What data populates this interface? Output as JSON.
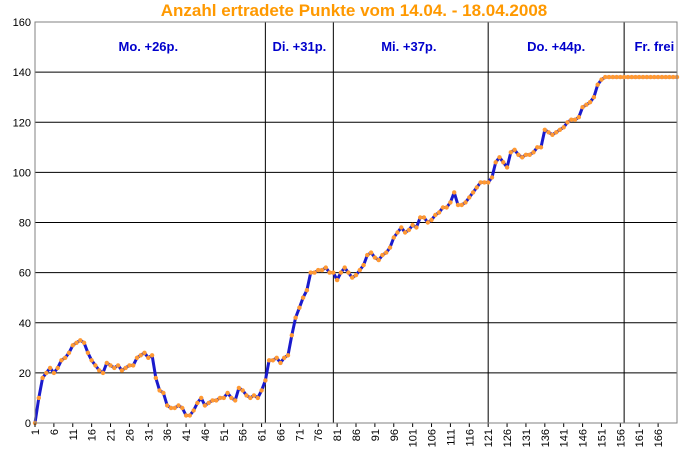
{
  "chart_data": {
    "type": "line",
    "title": "Anzahl ertradete Punkte vom 14.04. - 18.04.2008",
    "xlabel": "",
    "ylabel": "",
    "ylim": [
      0,
      160
    ],
    "xlim": [
      1,
      171
    ],
    "yticks": [
      0,
      20,
      40,
      60,
      80,
      100,
      120,
      140,
      160
    ],
    "xticks": [
      1,
      6,
      11,
      16,
      21,
      26,
      31,
      36,
      41,
      46,
      51,
      56,
      61,
      66,
      71,
      76,
      81,
      86,
      91,
      96,
      101,
      106,
      111,
      116,
      121,
      126,
      131,
      136,
      141,
      146,
      151,
      156,
      161,
      166
    ],
    "grid": "horizontal",
    "legend": "none",
    "colors": {
      "line": "#1a1acc",
      "marker": "#ff9933",
      "title": "#ff9900",
      "labels": "#0000cc"
    },
    "separators": [
      62,
      80,
      121,
      157
    ],
    "segments": [
      {
        "label": "Mo. +26p.",
        "x": 31
      },
      {
        "label": "Di. +31p.",
        "x": 71
      },
      {
        "label": "Mi. +37p.",
        "x": 100
      },
      {
        "label": "Do. +44p.",
        "x": 139
      },
      {
        "label": "Fr. frei",
        "x": 165
      }
    ],
    "series": [
      {
        "x_start": 1,
        "values": [
          0,
          10,
          18,
          20,
          22,
          20,
          22,
          25,
          26,
          28,
          31,
          32,
          33,
          32,
          28,
          25,
          23,
          21,
          20,
          24,
          23,
          22,
          23,
          21,
          22,
          23,
          23,
          26,
          27,
          28,
          26,
          27,
          18,
          13,
          12,
          7,
          6,
          6,
          7,
          6,
          3,
          3,
          5,
          8,
          10,
          7,
          8,
          9,
          9,
          10,
          10,
          12,
          10,
          9,
          14,
          13,
          11,
          10,
          11,
          10,
          13,
          17,
          25,
          25,
          26,
          24,
          26,
          27,
          35,
          42,
          46,
          50,
          53,
          60,
          60,
          61,
          61,
          62,
          60,
          60,
          57,
          60,
          62,
          60,
          58,
          59,
          61,
          63,
          67,
          68,
          66,
          65,
          67,
          68,
          70,
          74,
          76,
          78,
          76,
          77,
          79,
          78,
          82,
          82,
          80,
          81,
          83,
          84,
          86,
          86,
          88,
          92,
          87,
          87,
          88,
          90,
          92,
          94,
          96,
          96,
          96,
          98,
          104,
          106,
          104,
          102,
          108,
          109,
          107,
          106,
          107,
          107,
          108,
          110,
          110,
          117,
          116,
          115,
          116,
          117,
          118,
          120,
          121,
          121,
          122,
          126,
          127,
          128,
          130,
          135,
          137,
          138,
          138,
          138,
          138,
          138,
          138,
          138,
          138,
          138,
          138,
          138,
          138,
          138,
          138,
          138,
          138,
          138,
          138,
          138,
          138
        ]
      }
    ]
  }
}
